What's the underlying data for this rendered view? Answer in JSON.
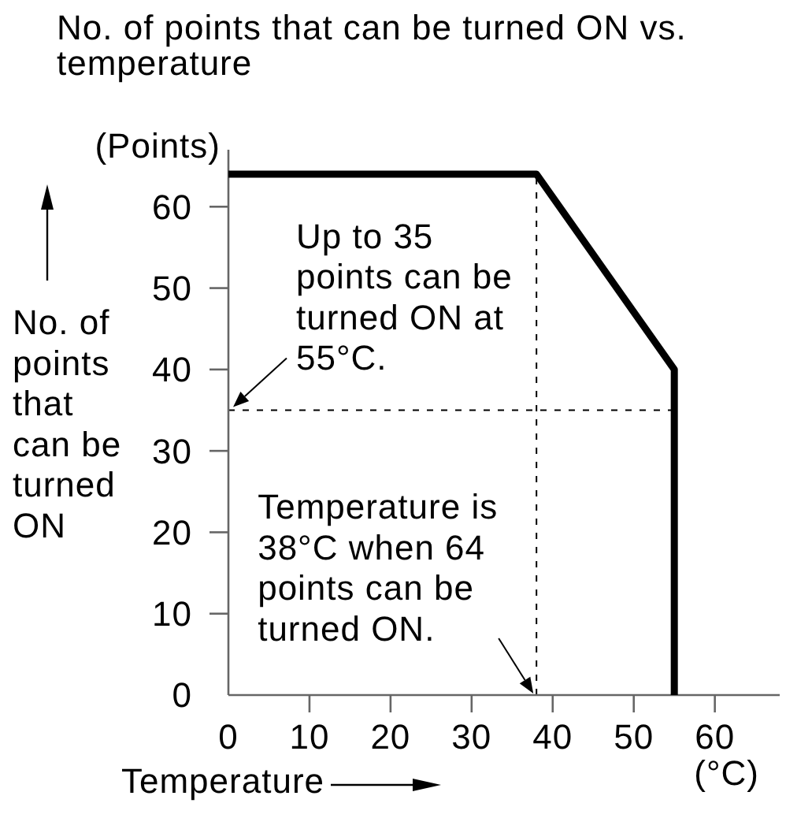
{
  "chart_data": {
    "type": "line",
    "title": "No. of points that can be turned ON vs. temperature",
    "xlabel": "Temperature",
    "ylabel": "No. of points that can be turned ON",
    "x": [
      0,
      38,
      55,
      55
    ],
    "series": [
      {
        "color": "#000000",
        "values": [
          64,
          64,
          40,
          0
        ]
      }
    ],
    "xlim": [
      0,
      68
    ],
    "ylim": [
      0,
      67
    ],
    "xticks": [
      0,
      10,
      20,
      30,
      40,
      50,
      60
    ],
    "yticks": [
      0,
      10,
      20,
      30,
      40,
      50,
      60
    ],
    "ref_lines": [
      {
        "axis": "x",
        "value": 38,
        "color": "#000000",
        "line_style": "dashed"
      },
      {
        "axis": "y",
        "value": 35,
        "color": "#000000",
        "line_style": "dashed"
      }
    ],
    "annotations": [
      "(Points)",
      "(°C)",
      {
        "text": "Up to 35 points can be turned ON at 55°C.",
        "x": 0,
        "y": 35
      },
      {
        "text": "Temperature is 38°C when 64 points can be turned ON.",
        "x": 38,
        "y": 0
      }
    ]
  }
}
